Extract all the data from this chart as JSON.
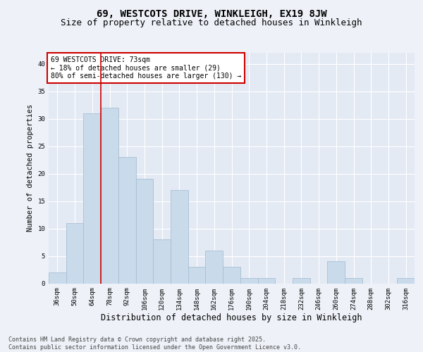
{
  "title": "69, WESTCOTS DRIVE, WINKLEIGH, EX19 8JW",
  "subtitle": "Size of property relative to detached houses in Winkleigh",
  "xlabel": "Distribution of detached houses by size in Winkleigh",
  "ylabel": "Number of detached properties",
  "bin_labels": [
    "36sqm",
    "50sqm",
    "64sqm",
    "78sqm",
    "92sqm",
    "106sqm",
    "120sqm",
    "134sqm",
    "148sqm",
    "162sqm",
    "176sqm",
    "190sqm",
    "204sqm",
    "218sqm",
    "232sqm",
    "246sqm",
    "260sqm",
    "274sqm",
    "288sqm",
    "302sqm",
    "316sqm"
  ],
  "bar_values": [
    2,
    11,
    31,
    32,
    23,
    19,
    8,
    17,
    3,
    6,
    3,
    1,
    1,
    0,
    1,
    0,
    4,
    1,
    0,
    0,
    1
  ],
  "bar_color": "#c9daea",
  "bar_edge_color": "#a8bfd4",
  "ylim": [
    0,
    42
  ],
  "yticks": [
    0,
    5,
    10,
    15,
    20,
    25,
    30,
    35,
    40
  ],
  "annotation_line1": "69 WESTCOTS DRIVE: 73sqm",
  "annotation_line2": "← 18% of detached houses are smaller (29)",
  "annotation_line3": "80% of semi-detached houses are larger (130) →",
  "annotation_box_color": "#ffffff",
  "annotation_box_edge": "#cc0000",
  "vline_color": "#cc0000",
  "footer_line1": "Contains HM Land Registry data © Crown copyright and database right 2025.",
  "footer_line2": "Contains public sector information licensed under the Open Government Licence v3.0.",
  "bg_color": "#eef2f8",
  "plot_bg_color": "#e4eaf4",
  "grid_color": "#ffffff",
  "title_fontsize": 10,
  "subtitle_fontsize": 9,
  "xlabel_fontsize": 8.5,
  "ylabel_fontsize": 7.5,
  "tick_fontsize": 6.5,
  "annotation_fontsize": 7,
  "footer_fontsize": 6
}
